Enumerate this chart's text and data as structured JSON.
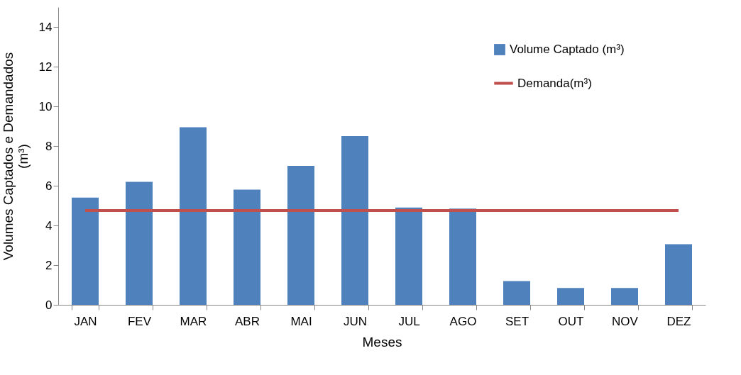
{
  "chart_data": {
    "type": "bar",
    "xlabel": "Meses",
    "ylabel": "Volumes Captados e Demandados (m³)",
    "categories": [
      "JAN",
      "FEV",
      "MAR",
      "ABR",
      "MAI",
      "JUN",
      "JUL",
      "AGO",
      "SET",
      "OUT",
      "NOV",
      "DEZ"
    ],
    "series": [
      {
        "name": "Volume Captado (m³)",
        "color": "#4f81bd",
        "values": [
          5.4,
          6.2,
          8.95,
          5.8,
          7.0,
          8.5,
          4.9,
          4.85,
          1.2,
          0.85,
          0.85,
          3.05
        ]
      },
      {
        "name": "Demanda(m³)",
        "type": "line",
        "color": "#c0504d",
        "values": [
          4.75,
          4.75,
          4.75,
          4.75,
          4.75,
          4.75,
          4.75,
          4.75,
          4.75,
          4.75,
          4.75,
          4.75
        ]
      }
    ],
    "ylim": [
      0,
      15
    ],
    "yticks": [
      0,
      2,
      4,
      6,
      8,
      10,
      12,
      14
    ],
    "grid": false,
    "legend": "top right"
  }
}
